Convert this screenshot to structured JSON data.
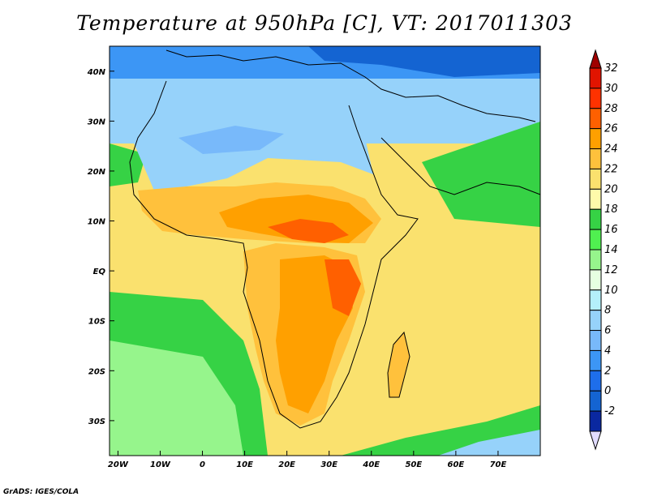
{
  "title": "Temperature at 950hPa [C], VT: 2017011303",
  "credit": "GrADS: IGES/COLA",
  "map": {
    "lon_range": [
      -22,
      80
    ],
    "lat_range": [
      -37,
      45
    ],
    "lon_ticks": [
      "20W",
      "10W",
      "0",
      "10E",
      "20E",
      "30E",
      "40E",
      "50E",
      "60E",
      "70E"
    ],
    "lon_tick_values": [
      -20,
      -10,
      0,
      10,
      20,
      30,
      40,
      50,
      60,
      70
    ],
    "lat_ticks": [
      "40N",
      "30N",
      "20N",
      "10N",
      "EQ",
      "10S",
      "20S",
      "30S"
    ],
    "lat_tick_values": [
      40,
      30,
      20,
      10,
      0,
      -10,
      -20,
      -30
    ]
  },
  "colorbar": {
    "labels": [
      "32",
      "30",
      "28",
      "26",
      "24",
      "22",
      "20",
      "18",
      "16",
      "14",
      "12",
      "10",
      "8",
      "6",
      "4",
      "2",
      "0",
      "-2"
    ],
    "values": [
      32,
      30,
      28,
      26,
      24,
      22,
      20,
      18,
      16,
      14,
      12,
      10,
      8,
      6,
      4,
      2,
      0,
      -2
    ],
    "colors": [
      "#a00000",
      "#e11400",
      "#ff3200",
      "#ff6000",
      "#ffa000",
      "#ffc13c",
      "#fae16e",
      "#fffaaa",
      "#36d245",
      "#50f050",
      "#96f58c",
      "#e6ffe1",
      "#b4f0fa",
      "#96d2fa",
      "#78b9fa",
      "#3c96f5",
      "#1e6eeb",
      "#1464d2",
      "#0a28a0",
      "#e1dcff"
    ]
  }
}
